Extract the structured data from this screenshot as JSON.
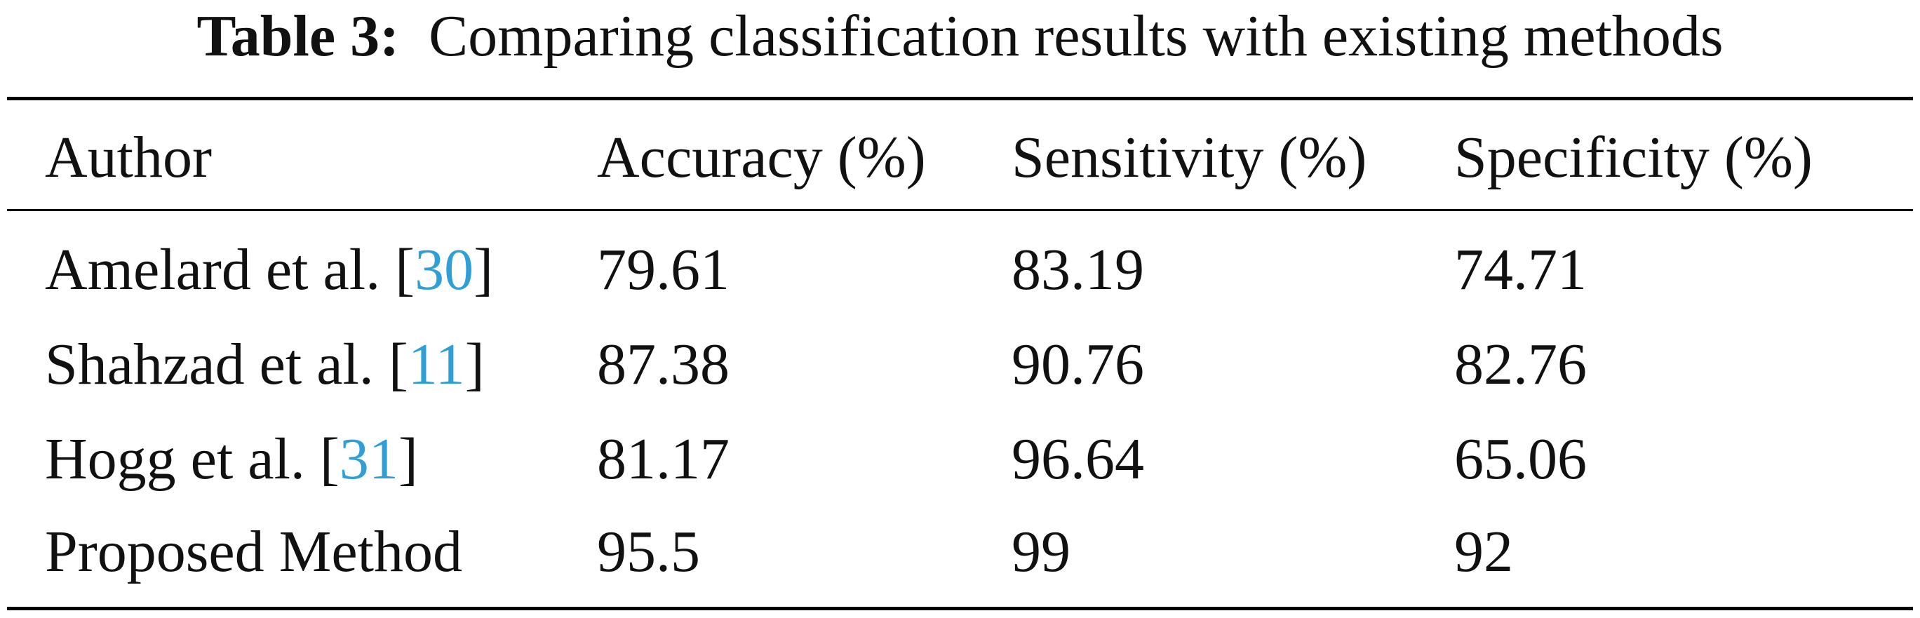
{
  "caption": {
    "label": "Table 3:",
    "text": "Comparing classification results with existing methods"
  },
  "table": {
    "headers": [
      "Author",
      "Accuracy (%)",
      "Sensitivity (%)",
      "Specificity (%)"
    ],
    "rows": [
      {
        "author": "Amelard et al.",
        "ref": "30",
        "accuracy": "79.61",
        "sensitivity": "83.19",
        "specificity": "74.71"
      },
      {
        "author": "Shahzad et al.",
        "ref": "11",
        "accuracy": "87.38",
        "sensitivity": "90.76",
        "specificity": "82.76"
      },
      {
        "author": "Hogg et al.",
        "ref": "31",
        "accuracy": "81.17",
        "sensitivity": "96.64",
        "specificity": "65.06"
      },
      {
        "author": "Proposed Method",
        "ref": "",
        "accuracy": "95.5",
        "sensitivity": "99",
        "specificity": "92"
      }
    ]
  },
  "colors": {
    "citation_link": "#2f9fd6",
    "text": "#111111",
    "rule": "#000000"
  }
}
